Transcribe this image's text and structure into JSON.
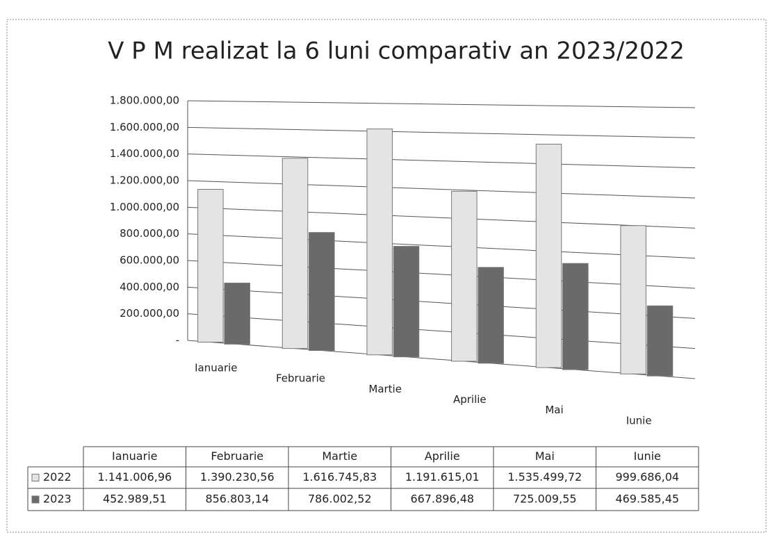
{
  "chart_data": {
    "type": "bar",
    "title": "V P M realizat la 6 luni comparativ an 2023/2022",
    "categories": [
      "Ianuarie",
      "Februarie",
      "Martie",
      "Aprilie",
      "Mai",
      "Iunie"
    ],
    "series": [
      {
        "name": "2022",
        "color": "#e4e4e4",
        "values": [
          1141006.96,
          1390230.56,
          1616745.83,
          1191615.01,
          1535499.72,
          999686.04
        ],
        "value_labels": [
          "1.141.006,96",
          "1.390.230,56",
          "1.616.745,83",
          "1.191.615,01",
          "1.535.499,72",
          "999.686,04"
        ]
      },
      {
        "name": "2023",
        "color": "#6a6a6a",
        "values": [
          452989.51,
          856803.14,
          786002.52,
          667896.48,
          725009.55,
          469585.45
        ],
        "value_labels": [
          "452.989,51",
          "856.803,14",
          "786.002,52",
          "667.896,48",
          "725.009,55",
          "469.585,45"
        ]
      }
    ],
    "ylim": [
      0,
      1800000
    ],
    "yticks": [
      {
        "value": 0,
        "label": "-"
      },
      {
        "value": 200000,
        "label": "200.000,00"
      },
      {
        "value": 400000,
        "label": "400.000,00"
      },
      {
        "value": 600000,
        "label": "600.000,00"
      },
      {
        "value": 800000,
        "label": "800.000,00"
      },
      {
        "value": 1000000,
        "label": "1.000.000,00"
      },
      {
        "value": 1200000,
        "label": "1.200.000,00"
      },
      {
        "value": 1400000,
        "label": "1.400.000,00"
      },
      {
        "value": 1600000,
        "label": "1.600.000,00"
      },
      {
        "value": 1800000,
        "label": "1.800.000,00"
      }
    ],
    "grid": true
  }
}
